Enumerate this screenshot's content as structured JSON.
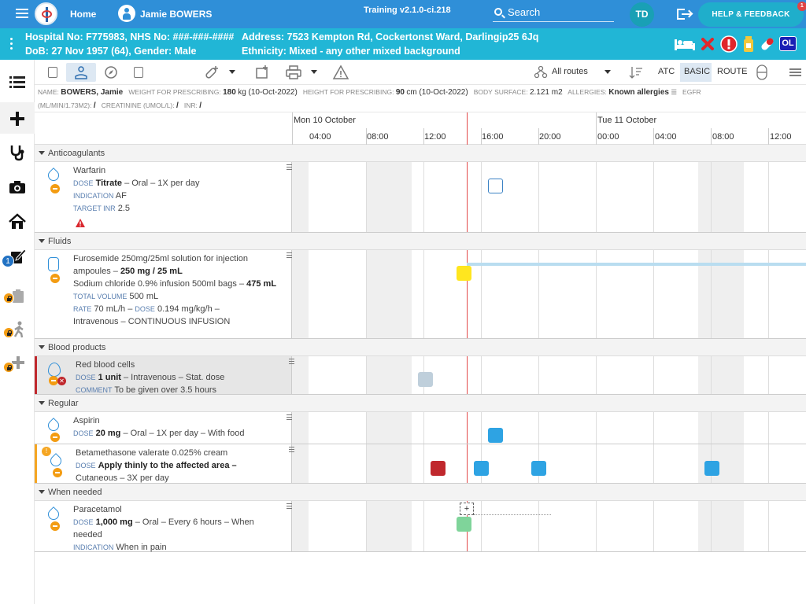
{
  "topbar": {
    "home": "Home",
    "patient_name": "Jamie BOWERS",
    "version": "Training v2.1.0-ci.218",
    "search": "Search",
    "user_initials": "TD",
    "help": "HELP & FEEDBACK",
    "help_badge": "1"
  },
  "patient": {
    "hospital_line": "Hospital No: F775983, NHS No: ###-###-####",
    "dob_line": "DoB: 27 Nov 1957 (64), Gender: Male",
    "address_line": "Address: 7523 Kempton Rd, Cockertonst Ward, Darlingip25 6Jq",
    "ethnicity_line": "Ethnicity: Mixed - any other mixed background",
    "ol_badge": "OL"
  },
  "nav": {
    "badge_count": "1"
  },
  "toolbar": {
    "routes": "All routes",
    "atc": "ATC",
    "basic": "BASIC",
    "route": "ROUTE"
  },
  "info": {
    "name_k": "NAME:",
    "name_v": "BOWERS, Jamie",
    "weight_k": "WEIGHT FOR PRESCRIBING:",
    "weight_v": "180",
    "weight_u": "kg (10-Oct-2022)",
    "height_k": "HEIGHT FOR PRESCRIBING:",
    "height_v": "90",
    "height_u": "cm (10-Oct-2022)",
    "bsa_k": "BODY SURFACE:",
    "bsa_v": "2.121 m2",
    "allergy_k": "ALLERGIES:",
    "allergy_v": "Known allergies",
    "egfr_k": "EGFR",
    "egfr2": "(ML/MIN/1.73M2):",
    "egfr_v": "/",
    "creat_k": "CREATININE (UMOL/L):",
    "creat_v": "/",
    "inr_k": "INR:",
    "inr_v": "/"
  },
  "timeline": {
    "day1": "Mon 10 October",
    "day2": "Tue 11 October",
    "times": [
      "04:00",
      "08:00",
      "12:00",
      "16:00",
      "20:00",
      "00:00",
      "04:00",
      "08:00",
      "12:00"
    ]
  },
  "sections": {
    "anticoag": "Anticoagulants",
    "fluids": "Fluids",
    "blood": "Blood products",
    "regular": "Regular",
    "prn": "When needed"
  },
  "meds": {
    "warfarin": {
      "name": "Warfarin",
      "dose_k": "DOSE",
      "dose_b": "Titrate",
      "dose_r": "– Oral – 1X per day",
      "ind_k": "INDICATION",
      "ind_v": "AF",
      "inr_k": "TARGET INR",
      "inr_v": "2.5"
    },
    "furo": {
      "name": "Furosemide 250mg/25ml solution for injection ampoules –",
      "name_b": "250 mg / 25 mL",
      "line2": "Sodium chloride 0.9% infusion 500ml bags –",
      "line2_b": "475 mL",
      "tv_k": "TOTAL VOLUME",
      "tv_v": "500 mL",
      "rate_k": "RATE",
      "rate_v": "70 mL/h –",
      "dose_k": "DOSE",
      "dose_v": "0.194 mg/kg/h –",
      "route": "Intravenous – CONTINUOUS INFUSION"
    },
    "rbc": {
      "name": "Red blood cells",
      "dose_k": "DOSE",
      "dose_b": "1 unit",
      "dose_r": "– Intravenous – Stat. dose",
      "com_k": "COMMENT",
      "com_v": "To be given over 3.5 hours"
    },
    "aspirin": {
      "name": "Aspirin",
      "dose_k": "DOSE",
      "dose_b": "20 mg",
      "dose_r": "– Oral – 1X per day – With food"
    },
    "beta": {
      "name": "Betamethasone valerate 0.025% cream",
      "dose_k": "DOSE",
      "dose_b": "Apply thinly to the affected area –",
      "route": "Cutaneous – 3X per day"
    },
    "para": {
      "name": "Paracetamol",
      "dose_k": "DOSE",
      "dose_b": "1,000 mg",
      "dose_r": "– Oral – Every 6 hours – When needed",
      "ind_k": "INDICATION",
      "ind_v": "When in pain",
      "plus": "+"
    }
  },
  "colors": {
    "topbar": "#2f8fd8",
    "patbar": "#21b6d6",
    "admin_blue": "#2ea3e3",
    "missed": "#c0282d",
    "infusion": "#ffe61f",
    "stat": "#bfcfdb",
    "prn": "#7fd49a"
  }
}
